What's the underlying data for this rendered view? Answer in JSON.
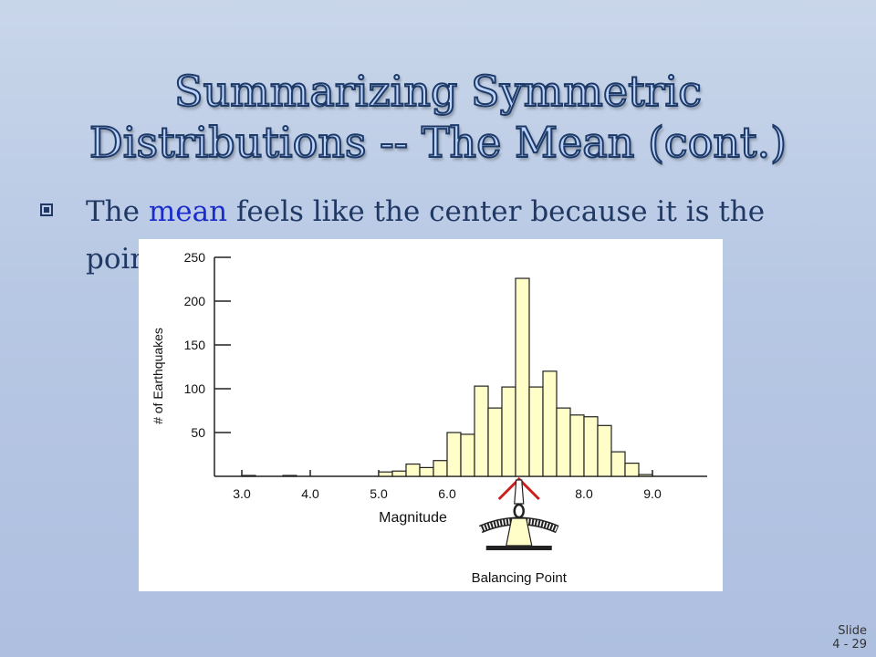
{
  "slide": {
    "title_line1": "Summarizing Symmetric",
    "title_line2": "Distributions -- The Mean (cont.)",
    "bullet": {
      "part1": "The ",
      "keyword": "mean",
      "part2": " feels like the center because it is the point where the histogram balances:"
    },
    "slide_label": "Slide",
    "slide_number": "4 - 29"
  },
  "colors": {
    "title_fill": "#bcd3ff",
    "title_outline": "#1e3a66",
    "bullet_text": "#203864",
    "keyword": "#1a2ccc",
    "bar_fill": "#fffdc8",
    "balance_marker": "#cc1f1f"
  },
  "chart_data": {
    "type": "bar",
    "ylabel": "# of Earthquakes",
    "xlabel": "Magnitude",
    "annotation": "Balancing Point",
    "y_ticks": [
      50,
      100,
      150,
      200,
      250
    ],
    "x_ticks": [
      "3.0",
      "4.0",
      "5.0",
      "6.0",
      "8.0",
      "9.0"
    ],
    "x_tick_values": [
      3.0,
      4.0,
      5.0,
      6.0,
      8.0,
      9.0
    ],
    "ylim": [
      0,
      250
    ],
    "xlim": [
      2.6,
      9.8
    ],
    "bin_width": 0.2,
    "bins": [
      {
        "x": 3.0,
        "value": 1
      },
      {
        "x": 3.6,
        "value": 1
      },
      {
        "x": 5.0,
        "value": 5
      },
      {
        "x": 5.2,
        "value": 6
      },
      {
        "x": 5.4,
        "value": 14
      },
      {
        "x": 5.6,
        "value": 10
      },
      {
        "x": 5.8,
        "value": 18
      },
      {
        "x": 6.0,
        "value": 50
      },
      {
        "x": 6.2,
        "value": 48
      },
      {
        "x": 6.4,
        "value": 103
      },
      {
        "x": 6.6,
        "value": 78
      },
      {
        "x": 6.8,
        "value": 102
      },
      {
        "x": 7.0,
        "value": 226
      },
      {
        "x": 7.2,
        "value": 102
      },
      {
        "x": 7.4,
        "value": 120
      },
      {
        "x": 7.6,
        "value": 78
      },
      {
        "x": 7.8,
        "value": 70
      },
      {
        "x": 8.0,
        "value": 68
      },
      {
        "x": 8.2,
        "value": 58
      },
      {
        "x": 8.4,
        "value": 28
      },
      {
        "x": 8.6,
        "value": 15
      },
      {
        "x": 8.8,
        "value": 2
      }
    ],
    "balance_point": 7.05
  }
}
